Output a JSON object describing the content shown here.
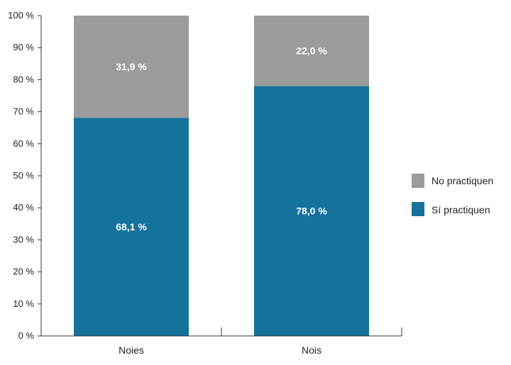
{
  "chart_data": {
    "type": "bar",
    "stacked": true,
    "categories": [
      "Noies",
      "Nois"
    ],
    "series": [
      {
        "name": "Sí practiquen",
        "values": [
          68.1,
          78.0
        ],
        "labels": [
          "68,1 %",
          "78,0 %"
        ],
        "color": "#14729b"
      },
      {
        "name": "No practiquen",
        "values": [
          31.9,
          22.0
        ],
        "labels": [
          "31,9 %",
          "22,0 %"
        ],
        "color": "#9b9b9b"
      }
    ],
    "ylim": [
      0,
      100
    ],
    "yticks": [
      0,
      10,
      20,
      30,
      40,
      50,
      60,
      70,
      80,
      90,
      100
    ],
    "ytick_labels": [
      "0 %",
      "10 %",
      "20 %",
      "30 %",
      "40 %",
      "50 %",
      "60 %",
      "70 %",
      "80 %",
      "90 %",
      "100 %"
    ],
    "grid": false,
    "legend": {
      "position": "right",
      "entries": [
        {
          "label": "No practiquen",
          "color": "#9b9b9b"
        },
        {
          "label": "Sí practiquen",
          "color": "#14729b"
        }
      ]
    }
  }
}
